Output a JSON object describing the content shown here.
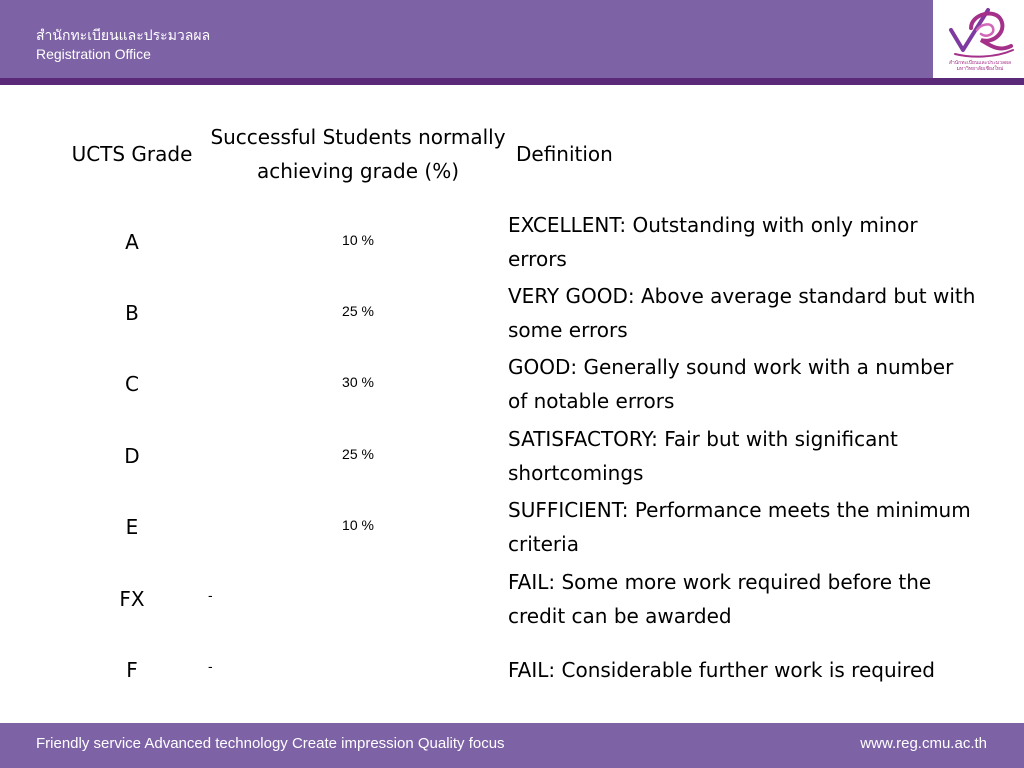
{
  "header": {
    "title_th": "สำนักทะเบียนและประมวลผล",
    "title_en": "Registration Office",
    "logo_caption": "สำนักทะเบียนและประมวลผล มหาวิทยาลัยเชียงใหม่"
  },
  "table": {
    "headers": {
      "grade": "UCTS Grade",
      "pct": "Successful Students normally achieving grade (%)",
      "definition": "Definition"
    },
    "rows": [
      {
        "grade": "A",
        "pct": "10 %",
        "definition": "EXCELLENT: Outstanding with only minor errors"
      },
      {
        "grade": "B",
        "pct": "25 %",
        "definition": "VERY GOOD: Above average standard but with some errors"
      },
      {
        "grade": "C",
        "pct": "30 %",
        "definition": "GOOD: Generally sound work with a number of notable errors"
      },
      {
        "grade": "D",
        "pct": "25 %",
        "definition": "SATISFACTORY: Fair but with significant shortcomings"
      },
      {
        "grade": "E",
        "pct": "10 %",
        "definition": "SUFFICIENT: Performance meets the minimum criteria"
      },
      {
        "grade": "FX",
        "pct": "-",
        "definition": "FAIL: Some more work required before the credit can be awarded"
      },
      {
        "grade": "F",
        "pct": "-",
        "definition": "FAIL: Considerable further work is required"
      }
    ]
  },
  "footer": {
    "slogan": "Friendly service  Advanced technology  Create impression  Quality focus",
    "url": "www.reg.cmu.ac.th"
  },
  "colors": {
    "header_bg": "#7e62a6",
    "header_accent": "#5a2a78",
    "logo_magenta": "#a4308a",
    "logo_check": "#7e3aa0"
  }
}
